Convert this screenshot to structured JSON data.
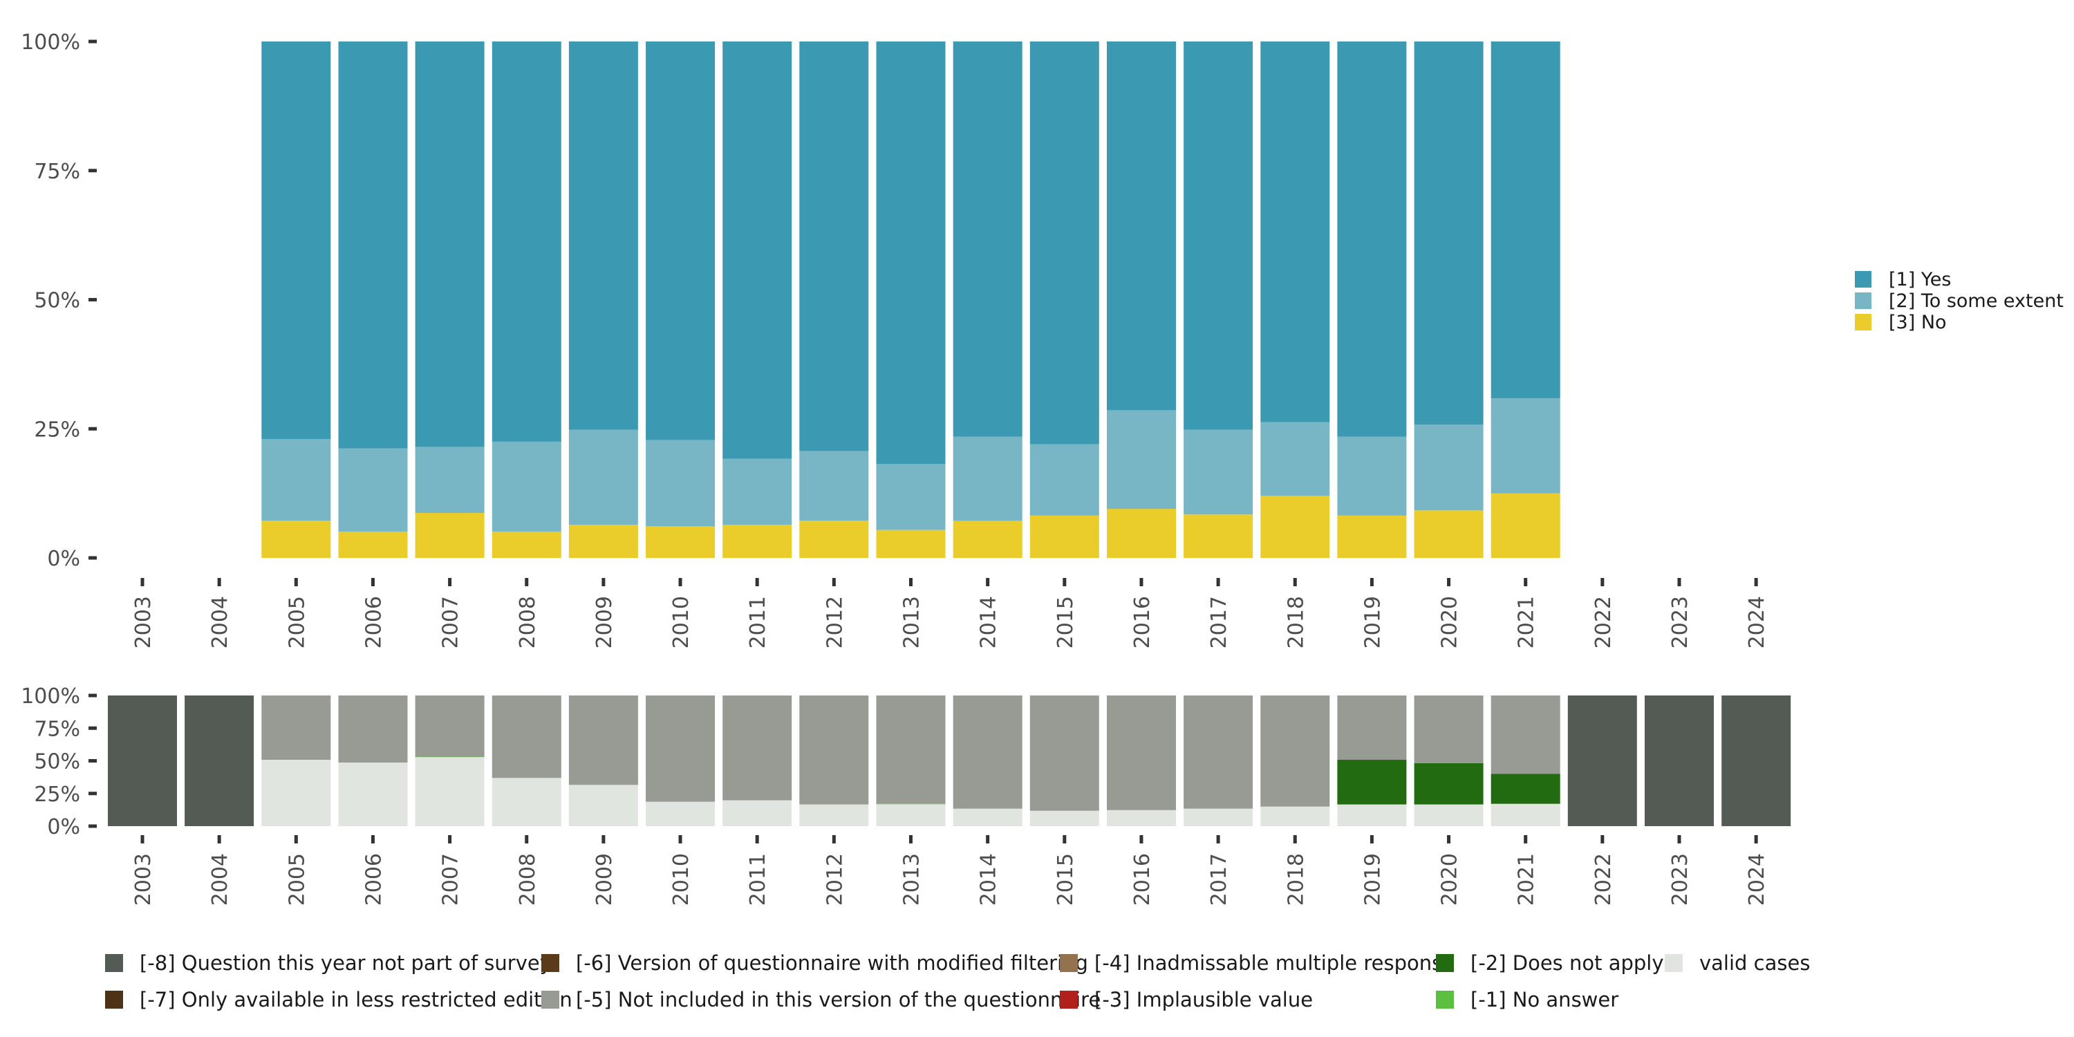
{
  "chart_data": [
    {
      "type": "bar",
      "stacked": true,
      "normalized": true,
      "title": "",
      "xlabel": "",
      "ylabel": "",
      "ylim": [
        0,
        100
      ],
      "y_ticks": [
        "0%",
        "25%",
        "50%",
        "75%",
        "100%"
      ],
      "categories": [
        "2003",
        "2004",
        "2005",
        "2006",
        "2007",
        "2008",
        "2009",
        "2010",
        "2011",
        "2012",
        "2013",
        "2014",
        "2015",
        "2016",
        "2017",
        "2018",
        "2019",
        "2020",
        "2021",
        "2022",
        "2023",
        "2024"
      ],
      "legend_position": "right",
      "series": [
        {
          "name": "[3] No",
          "color": "#EACC2B",
          "values": [
            null,
            null,
            7.2,
            5.1,
            8.7,
            5.1,
            6.4,
            6.1,
            6.4,
            7.2,
            5.4,
            7.2,
            8.2,
            9.5,
            8.4,
            12.0,
            8.2,
            9.2,
            12.5,
            null,
            null,
            null
          ]
        },
        {
          "name": "[2] To some extent",
          "color": "#79B6C5",
          "values": [
            null,
            null,
            15.8,
            16.1,
            12.8,
            17.4,
            18.4,
            16.7,
            12.8,
            13.5,
            12.8,
            16.3,
            13.8,
            19.1,
            16.4,
            14.3,
            15.3,
            16.6,
            18.4,
            null,
            null,
            null
          ]
        },
        {
          "name": "[1] Yes",
          "color": "#3C99B2",
          "values": [
            null,
            null,
            77.0,
            78.8,
            78.5,
            77.5,
            75.2,
            77.2,
            80.8,
            79.3,
            81.8,
            76.5,
            78.0,
            71.4,
            75.2,
            73.7,
            76.5,
            74.2,
            69.1,
            null,
            null,
            null
          ]
        }
      ],
      "legend": [
        "[1] Yes",
        "[2] To some extent",
        "[3] No"
      ]
    },
    {
      "type": "bar",
      "stacked": true,
      "normalized": true,
      "title": "",
      "xlabel": "",
      "ylabel": "",
      "ylim": [
        0,
        100
      ],
      "y_ticks": [
        "0%",
        "25%",
        "50%",
        "75%",
        "100%"
      ],
      "categories": [
        "2003",
        "2004",
        "2005",
        "2006",
        "2007",
        "2008",
        "2009",
        "2010",
        "2011",
        "2012",
        "2013",
        "2014",
        "2015",
        "2016",
        "2017",
        "2018",
        "2019",
        "2020",
        "2021",
        "2022",
        "2023",
        "2024"
      ],
      "legend_position": "bottom",
      "series": [
        {
          "name": "valid cases",
          "color": "#E1E5E0",
          "values": [
            0,
            0,
            50.8,
            48.7,
            52.9,
            36.9,
            31.6,
            18.7,
            19.8,
            16.6,
            16.8,
            13.4,
            11.8,
            12.3,
            13.4,
            15.0,
            16.6,
            16.6,
            17.1,
            0,
            0,
            0
          ]
        },
        {
          "name": "[-1] No answer",
          "color": "#5CBF42",
          "values": [
            0,
            0,
            0,
            0,
            0.3,
            0,
            0,
            0,
            0,
            0,
            0.3,
            0,
            0,
            0,
            0,
            0,
            0,
            0,
            0,
            0,
            0,
            0
          ]
        },
        {
          "name": "[-2] Does not apply",
          "color": "#236B10",
          "values": [
            0,
            0,
            0,
            0,
            0,
            0,
            0,
            0,
            0,
            0,
            0,
            0,
            0,
            0,
            0,
            0,
            34.2,
            31.6,
            23.0,
            0,
            0,
            0
          ]
        },
        {
          "name": "[-5] Not included in this version of the questionnaire",
          "color": "#979B94",
          "values": [
            0,
            0,
            49.2,
            51.3,
            46.8,
            63.1,
            68.4,
            81.3,
            80.2,
            83.4,
            82.9,
            86.6,
            88.2,
            87.7,
            86.6,
            85.0,
            49.2,
            51.8,
            59.9,
            0,
            0,
            0
          ]
        },
        {
          "name": "[-8] Question this year not part of survey",
          "color": "#545B54",
          "values": [
            100,
            100,
            0,
            0,
            0,
            0,
            0,
            0,
            0,
            0,
            0,
            0,
            0,
            0,
            0,
            0,
            0,
            0,
            0,
            100,
            100,
            100
          ]
        }
      ],
      "legend": [
        {
          "label": "[-8] Question this year not part of survey",
          "color": "#545B54"
        },
        {
          "label": "[-7] Only available in less restricted edition",
          "color": "#4D3218"
        },
        {
          "label": "[-6] Version of questionnaire with modified filtering",
          "color": "#5B3A1A"
        },
        {
          "label": "[-5] Not included in this version of the questionnaire",
          "color": "#979B94"
        },
        {
          "label": "[-4] Inadmissable multiple response",
          "color": "#94714F"
        },
        {
          "label": "[-3] Implausible value",
          "color": "#B2201C"
        },
        {
          "label": "[-2] Does not apply",
          "color": "#236B10"
        },
        {
          "label": "[-1] No answer",
          "color": "#5CBF42"
        },
        {
          "label": "valid cases",
          "color": "#E1E5E0"
        }
      ]
    }
  ]
}
